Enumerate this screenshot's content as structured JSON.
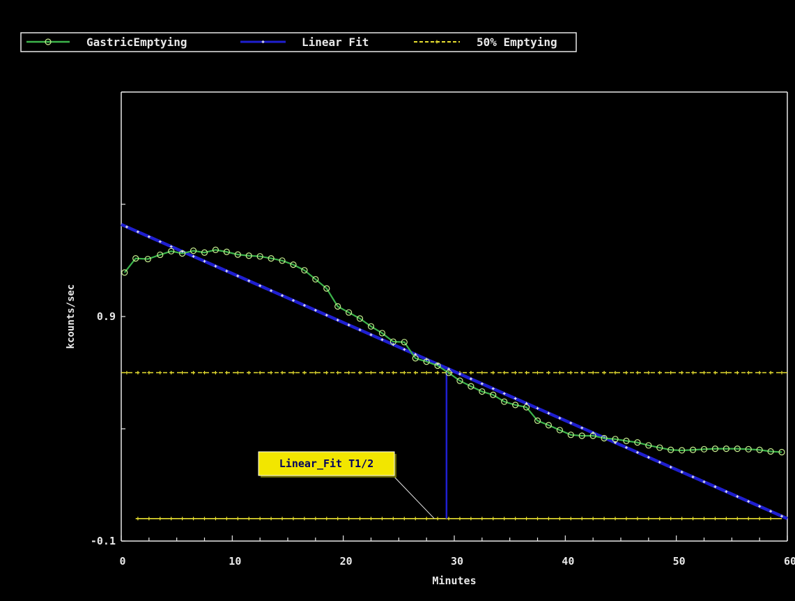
{
  "chart_data": {
    "type": "line",
    "xlabel": "Minutes",
    "ylabel": "kcounts/sec",
    "xlim": [
      0,
      60
    ],
    "ylim": [
      -0.1,
      1.9
    ],
    "x_ticks": [
      0,
      10,
      20,
      30,
      40,
      50,
      60
    ],
    "x_tick_labels": [
      "0",
      "10",
      "20",
      "30",
      "40",
      "50",
      "60"
    ],
    "y_ticks": [
      -0.1,
      0.9
    ],
    "y_tick_labels": [
      "-0.1",
      "0.9"
    ],
    "grid": false,
    "legend_position": "top-left",
    "series": [
      {
        "name": "GastricEmptying",
        "color": "#3cb44b",
        "marker": "circle",
        "x": [
          0.3,
          1.3,
          2.4,
          3.5,
          4.5,
          5.5,
          6.5,
          7.5,
          8.5,
          9.5,
          10.5,
          11.5,
          12.5,
          13.5,
          14.5,
          15.5,
          16.5,
          17.5,
          18.5,
          19.5,
          20.5,
          21.5,
          22.5,
          23.5,
          24.5,
          25.5,
          26.5,
          27.5,
          28.5,
          29.5,
          30.5,
          31.5,
          32.5,
          33.5,
          34.5,
          35.5,
          36.5,
          37.5,
          38.5,
          39.5,
          40.5,
          41.5,
          42.5,
          43.5,
          44.5,
          45.5,
          46.5,
          47.5,
          48.5,
          49.5,
          50.5,
          51.5,
          52.5,
          53.5,
          54.5,
          55.5,
          56.5,
          57.5,
          58.5,
          59.5
        ],
        "y": [
          1.096,
          1.159,
          1.156,
          1.175,
          1.191,
          1.181,
          1.193,
          1.185,
          1.197,
          1.188,
          1.176,
          1.171,
          1.168,
          1.159,
          1.149,
          1.131,
          1.106,
          1.066,
          1.025,
          0.945,
          0.918,
          0.891,
          0.856,
          0.826,
          0.788,
          0.786,
          0.714,
          0.699,
          0.681,
          0.649,
          0.614,
          0.589,
          0.566,
          0.551,
          0.521,
          0.506,
          0.496,
          0.436,
          0.416,
          0.394,
          0.373,
          0.369,
          0.369,
          0.358,
          0.354,
          0.346,
          0.339,
          0.326,
          0.316,
          0.306,
          0.304,
          0.306,
          0.309,
          0.311,
          0.311,
          0.311,
          0.309,
          0.306,
          0.299,
          0.296
        ]
      },
      {
        "name": "Linear Fit",
        "color": "#1f1fd0",
        "marker": "plus",
        "x": [
          0,
          60
        ],
        "y": [
          1.31,
          0.0
        ]
      },
      {
        "name": "50% Emptying",
        "color": "#e8e030",
        "marker": "plus",
        "x": [
          0,
          60
        ],
        "y": [
          0.65,
          0.65
        ]
      }
    ],
    "baseline_y": 0.0,
    "t_half_minutes": 29.3,
    "annotations": [
      {
        "text": "Linear_Fit T1/2",
        "point_x": 28.2,
        "point_y": 0.0
      }
    ]
  }
}
